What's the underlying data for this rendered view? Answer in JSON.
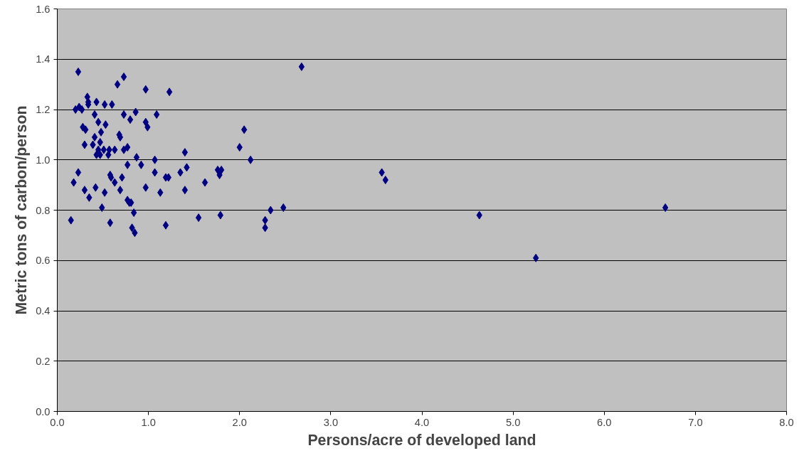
{
  "chart_data": {
    "type": "scatter",
    "xlabel": "Persons/acre of developed land",
    "ylabel": "Metric tons of carbon/person",
    "x": [
      0.23,
      0.73,
      2.68,
      0.66,
      0.97,
      1.23,
      0.33,
      0.34,
      0.34,
      0.43,
      0.52,
      0.24,
      0.2,
      0.27,
      0.6,
      0.86,
      1.09,
      0.73,
      0.8,
      0.41,
      0.45,
      0.53,
      0.97,
      0.99,
      2.05,
      0.28,
      0.31,
      0.48,
      0.68,
      0.69,
      0.41,
      0.47,
      0.39,
      0.3,
      0.77,
      2.0,
      0.45,
      0.51,
      0.73,
      0.57,
      0.63,
      1.4,
      0.43,
      0.56,
      0.47,
      0.87,
      1.07,
      2.12,
      0.92,
      0.77,
      1.42,
      1.8,
      1.76,
      0.23,
      1.07,
      1.35,
      3.56,
      1.78,
      0.58,
      0.59,
      0.71,
      1.22,
      1.19,
      3.6,
      0.18,
      0.63,
      1.62,
      0.42,
      0.97,
      1.4,
      0.3,
      0.69,
      1.13,
      0.52,
      0.35,
      0.77,
      0.79,
      0.81,
      2.34,
      2.48,
      0.49,
      6.67,
      0.84,
      1.79,
      4.63,
      0.15,
      1.55,
      2.28,
      0.58,
      1.19,
      0.82,
      2.28,
      0.85,
      5.25
    ],
    "values": [
      1.35,
      1.33,
      1.37,
      1.3,
      1.28,
      1.27,
      1.25,
      1.23,
      1.22,
      1.23,
      1.22,
      1.21,
      1.2,
      1.2,
      1.22,
      1.19,
      1.18,
      1.18,
      1.16,
      1.18,
      1.15,
      1.14,
      1.15,
      1.13,
      1.12,
      1.13,
      1.12,
      1.11,
      1.1,
      1.09,
      1.09,
      1.07,
      1.06,
      1.06,
      1.05,
      1.05,
      1.04,
      1.04,
      1.04,
      1.04,
      1.04,
      1.03,
      1.02,
      1.02,
      1.02,
      1.01,
      1.0,
      1.0,
      0.98,
      0.98,
      0.97,
      0.96,
      0.96,
      0.95,
      0.95,
      0.95,
      0.95,
      0.94,
      0.94,
      0.93,
      0.93,
      0.93,
      0.93,
      0.92,
      0.91,
      0.91,
      0.91,
      0.89,
      0.89,
      0.88,
      0.88,
      0.88,
      0.87,
      0.87,
      0.85,
      0.84,
      0.83,
      0.83,
      0.8,
      0.81,
      0.81,
      0.81,
      0.79,
      0.78,
      0.78,
      0.76,
      0.77,
      0.76,
      0.75,
      0.74,
      0.73,
      0.73,
      0.71,
      0.61
    ],
    "color": "#000080",
    "marker": "diamond",
    "xlim": [
      0,
      8
    ],
    "xticks": [
      {
        "value": 0,
        "label": "0.0"
      },
      {
        "value": 1,
        "label": "1.0"
      },
      {
        "value": 2,
        "label": "2.0"
      },
      {
        "value": 3,
        "label": "3.0"
      },
      {
        "value": 4,
        "label": "4.0"
      },
      {
        "value": 5,
        "label": "5.0"
      },
      {
        "value": 6,
        "label": "6.0"
      },
      {
        "value": 7,
        "label": "7.0"
      },
      {
        "value": 8,
        "label": "8.0"
      }
    ],
    "ylim": [
      0,
      1.6
    ],
    "yticks": [
      {
        "value": 0,
        "label": "0.0"
      },
      {
        "value": 0.2,
        "label": "0.2"
      },
      {
        "value": 0.4,
        "label": "0.4"
      },
      {
        "value": 0.6,
        "label": "0.6"
      },
      {
        "value": 0.8,
        "label": "0.8"
      },
      {
        "value": 1.0,
        "label": "1.0"
      },
      {
        "value": 1.2,
        "label": "1.2"
      },
      {
        "value": 1.4,
        "label": "1.4"
      },
      {
        "value": 1.6,
        "label": "1.6"
      }
    ],
    "grid": "y",
    "legend": false
  }
}
